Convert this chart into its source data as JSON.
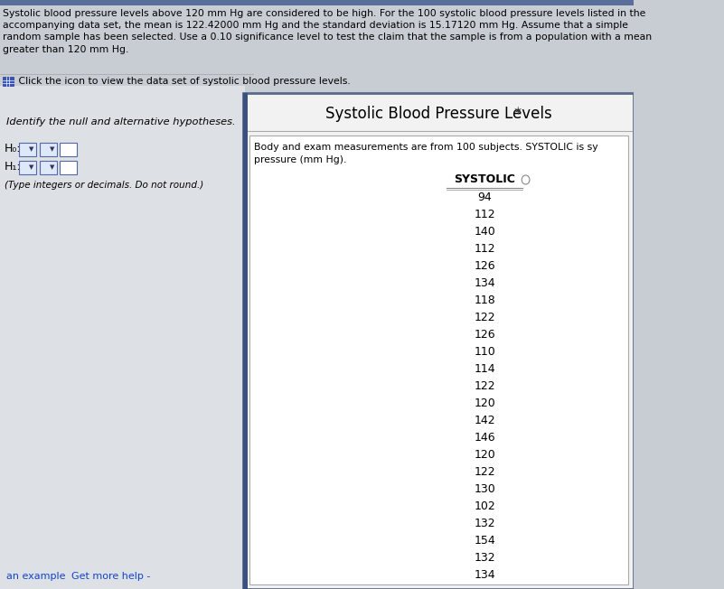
{
  "title_text": "Systolic blood pressure levels above 120 mm Hg are considered to be high. For the 100 systolic blood pressure levels listed in the\naccompanying data set, the mean is 122.42000 mm Hg and the standard deviation is 15.17120 mm Hg. Assume that a simple\nrandom sample has been selected. Use a 0.10 significance level to test the claim that the sample is from a population with a mean\ngreater than 120 mm Hg.",
  "click_text": " Click the icon to view the data set of systolic blood pressure levels.",
  "identify_text": "Identify the null and alternative hypotheses.",
  "h0_label": "H₀:",
  "h1_label": "H₁:",
  "type_text": "(Type integers or decimals. Do not round.)",
  "popup_title": "Systolic Blood Pressure Levels",
  "popup_body_line1": "Body and exam measurements are from 100 subjects. SYSTOLIC is sy",
  "popup_body_line2": "pressure (mm Hg).",
  "column_header": "SYSTOLIC",
  "systolic_values": [
    94,
    112,
    140,
    112,
    126,
    134,
    118,
    122,
    126,
    110,
    114,
    122,
    120,
    142,
    146,
    120,
    122,
    130,
    102,
    132,
    154,
    132,
    134
  ],
  "bottom_left_text": "an example",
  "bottom_right_text": "Get more help -",
  "bg_color": "#c8cdd4",
  "left_panel_color": "#dde0e5",
  "popup_bg": "#f2f2f2",
  "popup_border": "#5a6a8a",
  "inner_panel_bg": "#f8f8f8",
  "header_line_color": "#888888",
  "top_bar_color": "#5a6e9c"
}
